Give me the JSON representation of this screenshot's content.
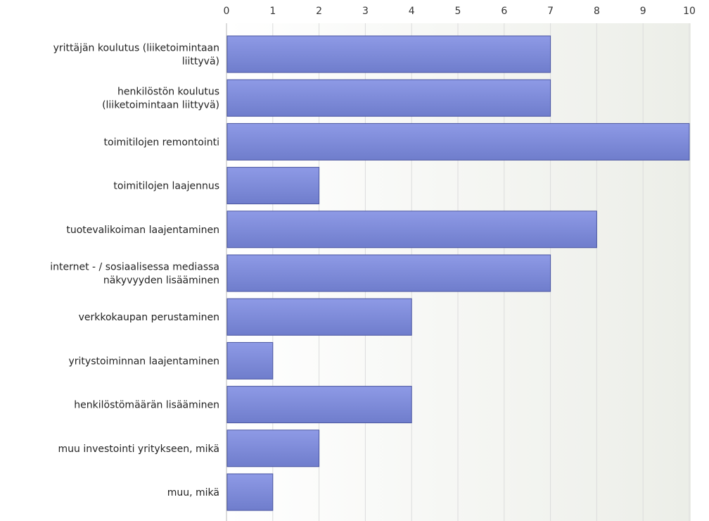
{
  "chart_data": {
    "type": "bar",
    "orientation": "horizontal",
    "title": "",
    "xlabel": "",
    "ylabel": "",
    "xlim": [
      0,
      10
    ],
    "ticks": [
      "0",
      "1",
      "2",
      "3",
      "4",
      "5",
      "6",
      "7",
      "8",
      "9",
      "10"
    ],
    "tick_position": "top",
    "grid": true,
    "legend": "none",
    "categories": [
      [
        "yrittäjän koulutus (liiketoimintaan",
        "liittyvä)"
      ],
      [
        "henkilöstön koulutus",
        "(liiketoimintaan liittyvä)"
      ],
      [
        "toimitilojen remontointi"
      ],
      [
        "toimitilojen laajennus"
      ],
      [
        "tuotevalikoiman laajentaminen"
      ],
      [
        "internet - / sosiaalisessa mediassa",
        "näkyvyyden lisääminen"
      ],
      [
        "verkkokaupan perustaminen"
      ],
      [
        "yritystoiminnan laajentaminen"
      ],
      [
        "henkilöstömäärän lisääminen"
      ],
      [
        "muu investointi yritykseen, mikä"
      ],
      [
        "muu, mikä"
      ]
    ],
    "values": [
      7,
      7,
      10,
      2,
      8,
      7,
      4,
      1,
      4,
      2,
      1
    ],
    "colors": {
      "bar_top": "#8e9ae6",
      "bar_bottom": "#6f7dcc",
      "bar_stroke": "#4a55a0",
      "plot_bg_left": "#ffffff",
      "plot_bg_right": "#eceee8"
    }
  }
}
